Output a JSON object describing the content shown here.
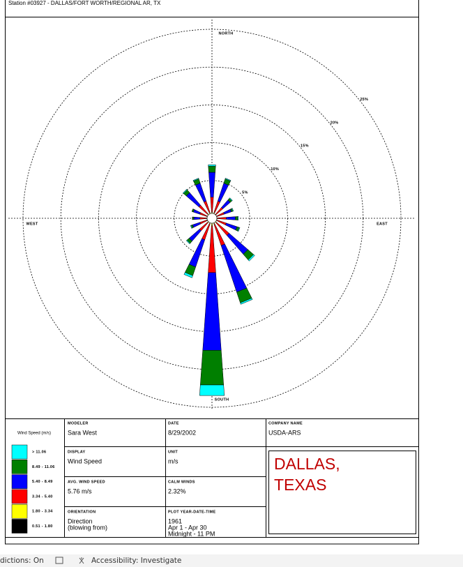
{
  "chart_data": {
    "type": "windrose",
    "title": "Station #03927 - DALLAS/FORT WORTH/REGIONAL AR, TX",
    "direction_labels": [
      "NORTH",
      "EAST",
      "SOUTH",
      "WEST"
    ],
    "categories": [
      null,
      null,
      null,
      null,
      null,
      null,
      null,
      null,
      null,
      null,
      null,
      null,
      null,
      null,
      null,
      null
    ],
    "rlim": [
      0,
      25
    ],
    "rticks": [
      {
        "value": 5,
        "label": "5%"
      },
      {
        "value": 10,
        "label": "10%"
      },
      {
        "value": 15,
        "label": "15%"
      },
      {
        "value": 20,
        "label": "20%"
      },
      {
        "value": 25,
        "label": "25%"
      }
    ],
    "legend_title": "Wind Speed (m/s)",
    "series": [
      {
        "name": "> 11.06",
        "color": "#00ffff",
        "values": [
          0.2,
          0.1,
          0.1,
          0.1,
          0.1,
          0.1,
          0.2,
          0.2,
          1.4,
          0.3,
          0.1,
          0.1,
          0.0,
          0.0,
          0.1,
          0.1
        ]
      },
      {
        "name": "8.49 - 11.06",
        "color": "#007f00",
        "values": [
          0.8,
          0.6,
          0.3,
          0.2,
          0.3,
          0.3,
          1.0,
          1.5,
          4.6,
          1.2,
          0.4,
          0.2,
          0.2,
          0.2,
          0.5,
          0.6
        ]
      },
      {
        "name": "5.40 - 8.49",
        "color": "#0000ff",
        "values": [
          3.3,
          2.5,
          1.3,
          1.0,
          1.2,
          1.5,
          3.3,
          6.5,
          10.3,
          3.8,
          1.8,
          1.0,
          0.8,
          0.9,
          2.2,
          2.5
        ]
      },
      {
        "name": "3.34 - 5.40",
        "color": "#ff0000",
        "values": [
          2.0,
          1.6,
          1.2,
          1.0,
          1.2,
          1.3,
          2.2,
          3.0,
          6.2,
          2.2,
          1.4,
          1.0,
          0.9,
          1.0,
          1.5,
          1.6
        ]
      },
      {
        "name": "1.80 - 3.34",
        "color": "#ffff00",
        "values": [
          0.5,
          0.5,
          0.4,
          0.4,
          0.4,
          0.4,
          0.5,
          0.5,
          0.6,
          0.5,
          0.5,
          0.4,
          0.4,
          0.4,
          0.5,
          0.5
        ]
      },
      {
        "name": "0.51 - 1.80",
        "color": "#000000",
        "values": [
          0.3,
          0.3,
          0.3,
          0.3,
          0.3,
          0.3,
          0.3,
          0.3,
          0.4,
          0.3,
          0.3,
          0.3,
          0.3,
          0.3,
          0.3,
          0.3
        ]
      }
    ]
  },
  "info": {
    "cells": [
      {
        "label": "MODELER",
        "lines": [
          "Sara West"
        ]
      },
      {
        "label": "DATE",
        "lines": [
          "8/29/2002"
        ]
      },
      {
        "label": "COMPANY NAME",
        "lines": [
          "USDA-ARS"
        ]
      },
      {
        "label": "DISPLAY",
        "lines": [
          "Wind Speed"
        ]
      },
      {
        "label": "UNIT",
        "lines": [
          "m/s"
        ]
      },
      {
        "label": "AVG. WIND SPEED",
        "lines": [
          "5.76 m/s"
        ]
      },
      {
        "label": "CALM WINDS",
        "lines": [
          "2.32%"
        ]
      },
      {
        "label": "ORIENTATION",
        "lines": [
          "Direction",
          "(blowing from)"
        ]
      },
      {
        "label": "PLOT YEAR-DATE-TIME",
        "lines": [
          "1961",
          "Apr 1 - Apr 30",
          "Midnight - 11 PM"
        ]
      }
    ],
    "comment": [
      "DALLAS,",
      "TEXAS"
    ]
  },
  "status_bar": [
    "dictions: On",
    "Accessibility: Investigate"
  ]
}
